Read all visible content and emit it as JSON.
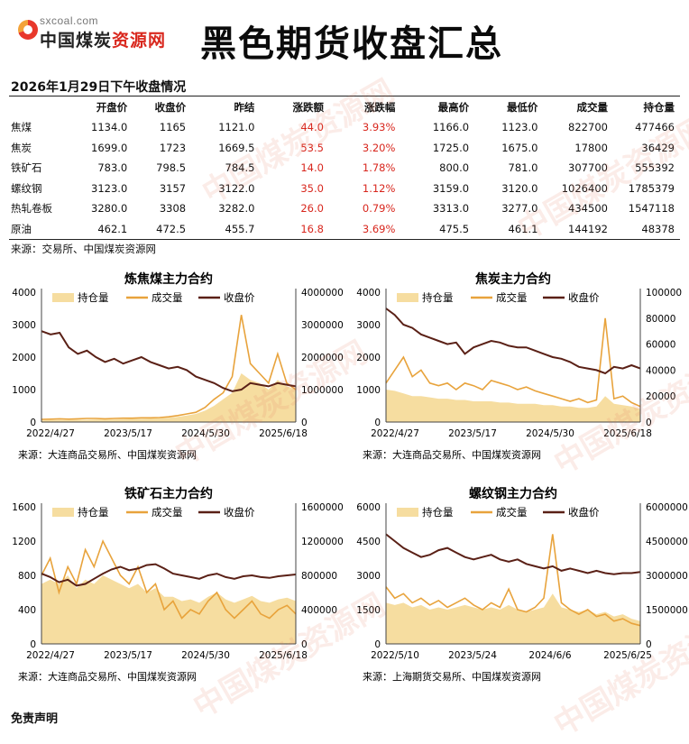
{
  "header": {
    "logo_sub": "sxcoal.com",
    "logo_main_a": "中国煤炭",
    "logo_main_b": "资源网",
    "title": "黑色期货收盘汇总"
  },
  "subtitle": "2026年1月29日下午收盘情况",
  "table": {
    "columns": [
      "",
      "开盘价",
      "收盘价",
      "昨结",
      "涨跌额",
      "涨跌幅",
      "最高价",
      "最低价",
      "成交量",
      "持仓量"
    ],
    "rows": [
      [
        "焦煤",
        "1134.0",
        "1165",
        "1121.0",
        "44.0",
        "3.93%",
        "1166.0",
        "1123.0",
        "822700",
        "477466"
      ],
      [
        "焦炭",
        "1699.0",
        "1723",
        "1669.5",
        "53.5",
        "3.20%",
        "1725.0",
        "1675.0",
        "17800",
        "36429"
      ],
      [
        "铁矿石",
        "783.0",
        "798.5",
        "784.5",
        "14.0",
        "1.78%",
        "800.0",
        "781.0",
        "307700",
        "555392"
      ],
      [
        "螺纹钢",
        "3123.0",
        "3157",
        "3122.0",
        "35.0",
        "1.12%",
        "3159.0",
        "3120.0",
        "1026400",
        "1785379"
      ],
      [
        "热轧卷板",
        "3280.0",
        "3308",
        "3282.0",
        "26.0",
        "0.79%",
        "3313.0",
        "3277.0",
        "434500",
        "1547118"
      ],
      [
        "原油",
        "462.1",
        "472.5",
        "455.7",
        "16.8",
        "3.69%",
        "475.5",
        "461.1",
        "144192",
        "48378"
      ]
    ],
    "source": "来源：交易所、中国煤炭资源网"
  },
  "colors": {
    "open_interest": "#f6dda0",
    "volume": "#e8a33c",
    "close": "#5a2016",
    "red": "#d8261d"
  },
  "chart_data": [
    {
      "type": "area",
      "title": "炼焦煤主力合约",
      "legend": [
        "持仓量",
        "成交量",
        "收盘价"
      ],
      "x_ticks": [
        "2022/4/27",
        "2023/5/17",
        "2024/5/30",
        "2025/6/18"
      ],
      "left_ticks": [
        "0",
        "1000",
        "2000",
        "3000",
        "4000"
      ],
      "right_ticks": [
        "0",
        "1000000",
        "2000000",
        "3000000",
        "4000000"
      ],
      "ylim_left": [
        0,
        4000
      ],
      "ylim_right": [
        0,
        4000000
      ],
      "close": [
        2800,
        2700,
        2750,
        2300,
        2100,
        2200,
        2000,
        1850,
        1950,
        1800,
        1900,
        2000,
        1850,
        1750,
        1650,
        1700,
        1600,
        1400,
        1300,
        1200,
        1050,
        950,
        1000,
        1200,
        1150,
        1100,
        1200,
        1150,
        1100
      ],
      "volume": [
        80000,
        90000,
        100000,
        90000,
        100000,
        110000,
        110000,
        100000,
        110000,
        120000,
        120000,
        130000,
        130000,
        140000,
        160000,
        200000,
        250000,
        300000,
        450000,
        700000,
        900000,
        1400000,
        3300000,
        1800000,
        1500000,
        1200000,
        2100000,
        1200000,
        1000000
      ],
      "open_interest": [
        50000,
        60000,
        60000,
        60000,
        70000,
        70000,
        80000,
        80000,
        80000,
        90000,
        100000,
        100000,
        110000,
        120000,
        130000,
        160000,
        200000,
        250000,
        350000,
        500000,
        700000,
        900000,
        1500000,
        1300000,
        1200000,
        1000000,
        1300000,
        1100000,
        1000000
      ],
      "source": "来源：大连商品交易所、中国煤炭资源网"
    },
    {
      "type": "area",
      "title": "焦炭主力合约",
      "legend": [
        "持仓量",
        "成交量",
        "收盘价"
      ],
      "x_ticks": [
        "2022/4/27",
        "2023/5/17",
        "2024/5/30",
        "2025/6/18"
      ],
      "left_ticks": [
        "0",
        "1000",
        "2000",
        "3000",
        "4000"
      ],
      "right_ticks": [
        "0",
        "20000",
        "40000",
        "60000",
        "80000",
        "100000"
      ],
      "ylim_left": [
        0,
        4000
      ],
      "ylim_right": [
        0,
        100000
      ],
      "close": [
        3500,
        3300,
        3000,
        2900,
        2700,
        2600,
        2500,
        2400,
        2450,
        2100,
        2300,
        2400,
        2500,
        2450,
        2350,
        2300,
        2300,
        2200,
        2100,
        2000,
        1950,
        1850,
        1700,
        1650,
        1600,
        1500,
        1700,
        1650,
        1750,
        1650
      ],
      "volume": [
        30000,
        40000,
        50000,
        35000,
        40000,
        30000,
        28000,
        30000,
        25000,
        30000,
        28000,
        25000,
        32000,
        30000,
        28000,
        25000,
        27000,
        24000,
        22000,
        20000,
        18000,
        16000,
        18000,
        15000,
        17000,
        80000,
        18000,
        20000,
        15000,
        12000
      ],
      "open_interest": [
        25000,
        24000,
        22000,
        20000,
        20000,
        19000,
        18000,
        18000,
        17000,
        17000,
        16000,
        16000,
        16000,
        15000,
        15000,
        14000,
        14000,
        14000,
        13000,
        13000,
        12000,
        12000,
        11000,
        11000,
        12000,
        20000,
        14000,
        13000,
        12000,
        10000
      ],
      "source": "来源：大连商品交易所、中国煤炭资源网"
    },
    {
      "type": "area",
      "title": "铁矿石主力合约",
      "legend": [
        "持仓量",
        "成交量",
        "收盘价"
      ],
      "x_ticks": [
        "2022/4/27",
        "2023/5/17",
        "2024/5/30",
        "2025/6/18"
      ],
      "left_ticks": [
        "0",
        "400",
        "800",
        "1200",
        "1600"
      ],
      "right_ticks": [
        "0",
        "400000",
        "800000",
        "1200000",
        "1600000"
      ],
      "ylim_left": [
        0,
        1600
      ],
      "ylim_right": [
        0,
        1600000
      ],
      "close": [
        820,
        780,
        720,
        750,
        680,
        700,
        760,
        820,
        870,
        900,
        860,
        880,
        920,
        930,
        880,
        820,
        800,
        780,
        760,
        800,
        820,
        780,
        760,
        790,
        800,
        780,
        770,
        790,
        800,
        810
      ],
      "volume": [
        800000,
        1000000,
        600000,
        900000,
        700000,
        1100000,
        900000,
        1200000,
        1000000,
        800000,
        700000,
        900000,
        600000,
        700000,
        400000,
        500000,
        300000,
        400000,
        350000,
        500000,
        600000,
        400000,
        300000,
        400000,
        500000,
        350000,
        300000,
        400000,
        450000,
        350000
      ],
      "open_interest": [
        700000,
        750000,
        700000,
        800000,
        650000,
        750000,
        700000,
        800000,
        750000,
        700000,
        650000,
        700000,
        600000,
        650000,
        550000,
        550000,
        500000,
        520000,
        480000,
        550000,
        600000,
        520000,
        480000,
        520000,
        560000,
        500000,
        480000,
        520000,
        540000,
        500000
      ],
      "source": "来源：大连商品交易所、中国煤炭资源网"
    },
    {
      "type": "area",
      "title": "螺纹钢主力合约",
      "legend": [
        "持仓量",
        "成交量",
        "收盘价"
      ],
      "x_ticks": [
        "2022/5/10",
        "2023/5/24",
        "2024/6/6",
        "2025/6/25"
      ],
      "left_ticks": [
        "0",
        "1500",
        "3000",
        "4500",
        "6000"
      ],
      "right_ticks": [
        "0",
        "1500000",
        "3000000",
        "4500000",
        "6000000"
      ],
      "ylim_left": [
        0,
        6000
      ],
      "ylim_right": [
        0,
        6000000
      ],
      "close": [
        4800,
        4500,
        4200,
        4000,
        3800,
        3900,
        4100,
        4200,
        4000,
        3800,
        3700,
        3800,
        3900,
        3700,
        3600,
        3700,
        3500,
        3400,
        3300,
        3400,
        3200,
        3300,
        3200,
        3100,
        3200,
        3100,
        3050,
        3100,
        3100,
        3150
      ],
      "volume": [
        2500000,
        2000000,
        2200000,
        1800000,
        2000000,
        1700000,
        1900000,
        1600000,
        1800000,
        2000000,
        1700000,
        1500000,
        1800000,
        1600000,
        2400000,
        1500000,
        1400000,
        1600000,
        2000000,
        4800000,
        1800000,
        1500000,
        1300000,
        1500000,
        1200000,
        1300000,
        1000000,
        1100000,
        900000,
        800000
      ],
      "open_interest": [
        1800000,
        1700000,
        1800000,
        1600000,
        1700000,
        1500000,
        1600000,
        1500000,
        1600000,
        1700000,
        1600000,
        1500000,
        1600000,
        1500000,
        1700000,
        1500000,
        1400000,
        1500000,
        1600000,
        2200000,
        1600000,
        1500000,
        1400000,
        1500000,
        1300000,
        1400000,
        1200000,
        1300000,
        1100000,
        1000000
      ],
      "source": "来源：上海期货交易所、中国煤炭资源网"
    }
  ],
  "watermark": "中国煤炭资源网",
  "bottom_text": "免责声明"
}
